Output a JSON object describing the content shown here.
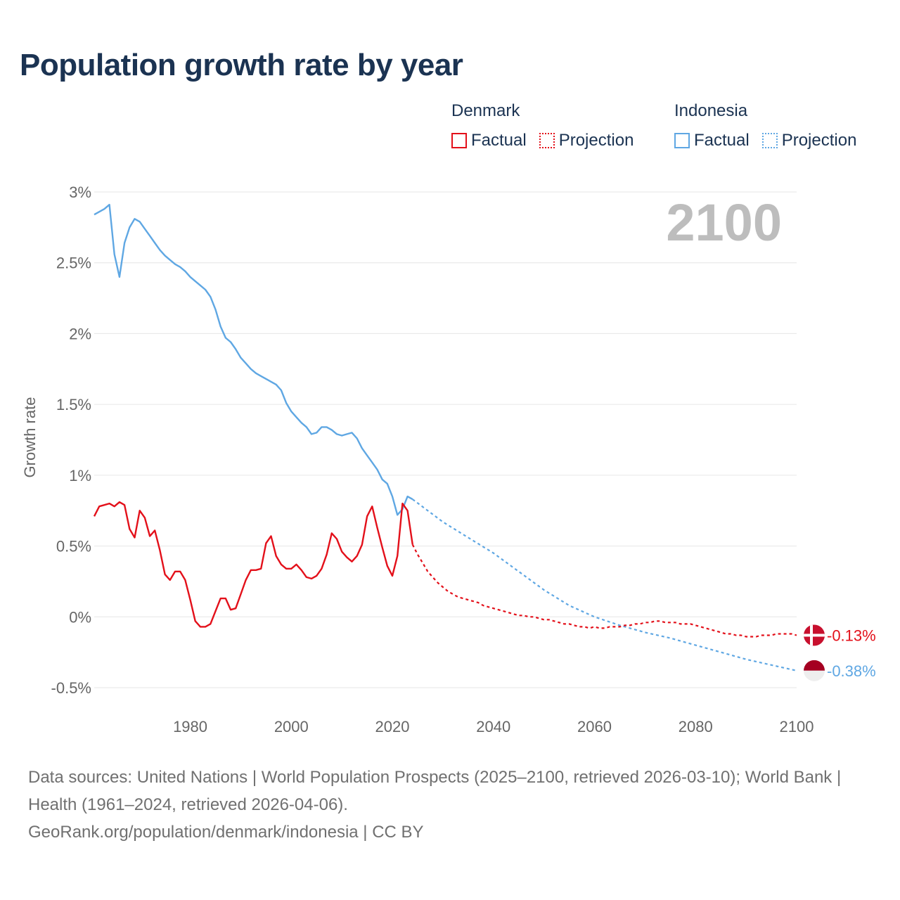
{
  "title": "Population growth rate by year",
  "legend": {
    "groups": [
      {
        "country": "Denmark",
        "factual_label": "Factual",
        "projection_label": "Projection",
        "color": "#e3101a"
      },
      {
        "country": "Indonesia",
        "factual_label": "Factual",
        "projection_label": "Projection",
        "color": "#5fa7e3"
      }
    ]
  },
  "year_label": "2100",
  "footer": {
    "sources": "Data sources: United Nations | World Population Prospects (2025–2100, retrieved 2026-03-10); World Bank | Health (1961–2024, retrieved 2026-04-06).",
    "credit": "GeoRank.org/population/denmark/indonesia | CC BY"
  },
  "chart_data": {
    "type": "line",
    "title": "Population growth rate by year",
    "ylabel": "Growth rate",
    "xlabel": "",
    "xlim": [
      1961,
      2100
    ],
    "ylim": [
      -0.5,
      3
    ],
    "x_ticks": [
      1980,
      2000,
      2020,
      2040,
      2060,
      2080,
      2100
    ],
    "y_ticks": [
      -0.5,
      0,
      0.5,
      1,
      1.5,
      2,
      2.5,
      3
    ],
    "y_tick_labels": [
      "-0.5%",
      "0%",
      "0.5%",
      "1%",
      "1.5%",
      "2%",
      "2.5%",
      "3%"
    ],
    "grid": true,
    "series": [
      {
        "name": "Denmark",
        "color": "#e3101a",
        "end_label": "-0.13%",
        "flag_icon": "denmark-flag-icon",
        "factual": {
          "x": [
            1961,
            1962,
            1963,
            1964,
            1965,
            1966,
            1967,
            1968,
            1969,
            1970,
            1971,
            1972,
            1973,
            1974,
            1975,
            1976,
            1977,
            1978,
            1979,
            1980,
            1981,
            1982,
            1983,
            1984,
            1985,
            1986,
            1987,
            1988,
            1989,
            1990,
            1991,
            1992,
            1993,
            1994,
            1995,
            1996,
            1997,
            1998,
            1999,
            2000,
            2001,
            2002,
            2003,
            2004,
            2005,
            2006,
            2007,
            2008,
            2009,
            2010,
            2011,
            2012,
            2013,
            2014,
            2015,
            2016,
            2017,
            2018,
            2019,
            2020,
            2021,
            2022,
            2023,
            2024
          ],
          "y": [
            0.71,
            0.78,
            0.79,
            0.8,
            0.78,
            0.81,
            0.79,
            0.62,
            0.56,
            0.75,
            0.7,
            0.57,
            0.61,
            0.47,
            0.3,
            0.26,
            0.32,
            0.32,
            0.26,
            0.12,
            -0.03,
            -0.07,
            -0.07,
            -0.05,
            0.04,
            0.13,
            0.13,
            0.05,
            0.06,
            0.16,
            0.26,
            0.33,
            0.33,
            0.34,
            0.52,
            0.57,
            0.43,
            0.37,
            0.34,
            0.34,
            0.37,
            0.33,
            0.28,
            0.27,
            0.29,
            0.34,
            0.44,
            0.59,
            0.55,
            0.46,
            0.42,
            0.39,
            0.43,
            0.51,
            0.71,
            0.78,
            0.63,
            0.49,
            0.36,
            0.29,
            0.43,
            0.8,
            0.75,
            0.51
          ]
        },
        "projection": {
          "x": [
            2024,
            2025,
            2026,
            2027,
            2028,
            2029,
            2030,
            2031,
            2032,
            2033,
            2034,
            2035,
            2036,
            2037,
            2038,
            2039,
            2040,
            2041,
            2042,
            2043,
            2044,
            2045,
            2046,
            2047,
            2048,
            2049,
            2050,
            2051,
            2052,
            2053,
            2054,
            2055,
            2056,
            2057,
            2058,
            2059,
            2060,
            2061,
            2062,
            2063,
            2064,
            2065,
            2066,
            2067,
            2068,
            2069,
            2070,
            2071,
            2072,
            2073,
            2074,
            2075,
            2076,
            2077,
            2078,
            2079,
            2080,
            2081,
            2082,
            2083,
            2084,
            2085,
            2086,
            2087,
            2088,
            2089,
            2090,
            2091,
            2092,
            2093,
            2094,
            2095,
            2096,
            2097,
            2098,
            2099,
            2100
          ],
          "y": [
            0.51,
            0.44,
            0.38,
            0.32,
            0.28,
            0.24,
            0.21,
            0.18,
            0.16,
            0.14,
            0.13,
            0.12,
            0.11,
            0.1,
            0.08,
            0.07,
            0.06,
            0.05,
            0.04,
            0.03,
            0.02,
            0.01,
            0.01,
            0.0,
            0.0,
            -0.01,
            -0.02,
            -0.02,
            -0.03,
            -0.04,
            -0.05,
            -0.05,
            -0.06,
            -0.07,
            -0.07,
            -0.08,
            -0.07,
            -0.08,
            -0.08,
            -0.07,
            -0.07,
            -0.07,
            -0.06,
            -0.06,
            -0.05,
            -0.05,
            -0.04,
            -0.04,
            -0.03,
            -0.03,
            -0.04,
            -0.04,
            -0.04,
            -0.05,
            -0.05,
            -0.05,
            -0.06,
            -0.07,
            -0.08,
            -0.09,
            -0.1,
            -0.11,
            -0.12,
            -0.12,
            -0.13,
            -0.13,
            -0.14,
            -0.14,
            -0.14,
            -0.13,
            -0.13,
            -0.13,
            -0.12,
            -0.12,
            -0.12,
            -0.12,
            -0.13
          ]
        }
      },
      {
        "name": "Indonesia",
        "color": "#5fa7e3",
        "end_label": "-0.38%",
        "flag_icon": "indonesia-flag-icon",
        "factual": {
          "x": [
            1961,
            1962,
            1963,
            1964,
            1965,
            1966,
            1967,
            1968,
            1969,
            1970,
            1971,
            1972,
            1973,
            1974,
            1975,
            1976,
            1977,
            1978,
            1979,
            1980,
            1981,
            1982,
            1983,
            1984,
            1985,
            1986,
            1987,
            1988,
            1989,
            1990,
            1991,
            1992,
            1993,
            1994,
            1995,
            1996,
            1997,
            1998,
            1999,
            2000,
            2001,
            2002,
            2003,
            2004,
            2005,
            2006,
            2007,
            2008,
            2009,
            2010,
            2011,
            2012,
            2013,
            2014,
            2015,
            2016,
            2017,
            2018,
            2019,
            2020,
            2021,
            2022,
            2023,
            2024
          ],
          "y": [
            2.84,
            2.86,
            2.88,
            2.91,
            2.56,
            2.4,
            2.64,
            2.75,
            2.81,
            2.79,
            2.74,
            2.69,
            2.64,
            2.59,
            2.55,
            2.52,
            2.49,
            2.47,
            2.44,
            2.4,
            2.37,
            2.34,
            2.31,
            2.26,
            2.17,
            2.05,
            1.97,
            1.94,
            1.89,
            1.83,
            1.79,
            1.75,
            1.72,
            1.7,
            1.68,
            1.66,
            1.64,
            1.6,
            1.51,
            1.45,
            1.41,
            1.37,
            1.34,
            1.29,
            1.3,
            1.34,
            1.34,
            1.32,
            1.29,
            1.28,
            1.29,
            1.3,
            1.26,
            1.19,
            1.14,
            1.09,
            1.04,
            0.97,
            0.94,
            0.85,
            0.72,
            0.76,
            0.85,
            0.83
          ]
        },
        "projection": {
          "x": [
            2024,
            2030,
            2035,
            2040,
            2045,
            2050,
            2055,
            2060,
            2065,
            2070,
            2075,
            2080,
            2085,
            2090,
            2095,
            2100
          ],
          "y": [
            0.83,
            0.67,
            0.56,
            0.45,
            0.32,
            0.19,
            0.08,
            0.0,
            -0.06,
            -0.11,
            -0.15,
            -0.2,
            -0.25,
            -0.3,
            -0.34,
            -0.38
          ]
        }
      }
    ]
  }
}
